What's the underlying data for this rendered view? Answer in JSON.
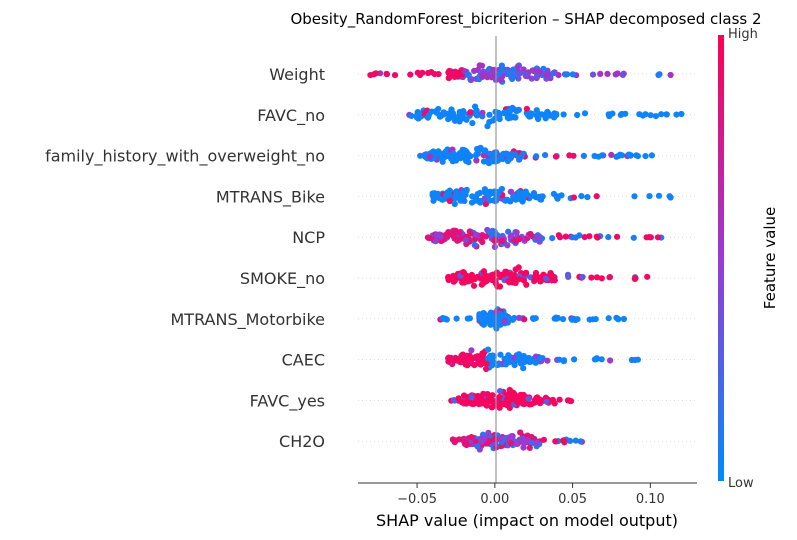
{
  "chart_data": {
    "type": "scatter",
    "subtype": "shap-beeswarm",
    "title": "Obesity_RandomForest_bicriterion – SHAP decomposed class 2",
    "xlabel": "SHAP value (impact on model output)",
    "xlim": [
      -0.088,
      0.13
    ],
    "xticks": [
      -0.05,
      0.0,
      0.05,
      0.1
    ],
    "xtick_labels": [
      "−0.05",
      "0.00",
      "0.05",
      "0.10"
    ],
    "grid": false,
    "colorbar": {
      "label": "Feature value",
      "high_label": "High",
      "low_label": "Low",
      "low_color": "#008bfb",
      "mid_color": "#9a3bd1",
      "high_color": "#ff0052"
    },
    "features": [
      {
        "name": "Weight",
        "min": -0.08,
        "max": 0.113,
        "core": [
          -0.03,
          0.04
        ],
        "color_pattern": "neg_high_pos_mixed",
        "sample_points": [
          [
            -0.08,
            0.9
          ],
          [
            -0.05,
            0.85
          ],
          [
            0.0,
            0.5
          ],
          [
            0.05,
            0.3
          ],
          [
            0.1,
            0.35
          ],
          [
            0.113,
            0.5
          ]
        ]
      },
      {
        "name": "FAVC_no",
        "min": -0.055,
        "max": 0.12,
        "core": [
          -0.05,
          0.04
        ],
        "color_pattern": "mostly_low",
        "sample_points": [
          [
            -0.05,
            0.05
          ],
          [
            0.0,
            0.4
          ],
          [
            0.05,
            0.05
          ],
          [
            0.12,
            0.05
          ]
        ]
      },
      {
        "name": "family_history_with_overweight_no",
        "min": -0.048,
        "max": 0.101,
        "core": [
          -0.045,
          0.02
        ],
        "color_pattern": "mostly_low_some_high",
        "sample_points": [
          [
            -0.048,
            0.05
          ],
          [
            0.0,
            0.3
          ],
          [
            0.03,
            0.9
          ],
          [
            0.101,
            0.05
          ]
        ]
      },
      {
        "name": "MTRANS_Bike",
        "min": -0.04,
        "max": 0.113,
        "core": [
          -0.04,
          0.03
        ],
        "color_pattern": "mostly_low",
        "sample_points": [
          [
            -0.04,
            0.05
          ],
          [
            0.0,
            0.1
          ],
          [
            0.113,
            0.05
          ]
        ]
      },
      {
        "name": "NCP",
        "min": -0.043,
        "max": 0.107,
        "core": [
          -0.04,
          0.03
        ],
        "color_pattern": "mixed",
        "sample_points": [
          [
            -0.043,
            0.8
          ],
          [
            0.0,
            0.5
          ],
          [
            0.05,
            0.7
          ],
          [
            0.107,
            0.9
          ]
        ]
      },
      {
        "name": "SMOKE_no",
        "min": -0.03,
        "max": 0.098,
        "core": [
          -0.03,
          0.04
        ],
        "color_pattern": "mostly_high",
        "sample_points": [
          [
            -0.03,
            0.95
          ],
          [
            0.0,
            0.9
          ],
          [
            0.098,
            0.95
          ]
        ]
      },
      {
        "name": "MTRANS_Motorbike",
        "min": -0.035,
        "max": 0.083,
        "core": [
          -0.01,
          0.01
        ],
        "color_pattern": "mostly_low",
        "sample_points": [
          [
            -0.035,
            0.3
          ],
          [
            0.0,
            0.05
          ],
          [
            0.083,
            0.05
          ]
        ]
      },
      {
        "name": "CAEC",
        "min": -0.03,
        "max": 0.092,
        "core": [
          -0.03,
          0.03
        ],
        "color_pattern": "neg_high_pos_low",
        "sample_points": [
          [
            -0.03,
            0.95
          ],
          [
            0.0,
            0.1
          ],
          [
            0.092,
            0.05
          ]
        ]
      },
      {
        "name": "FAVC_yes",
        "min": -0.028,
        "max": 0.049,
        "core": [
          -0.02,
          0.03
        ],
        "color_pattern": "mostly_high",
        "sample_points": [
          [
            -0.028,
            0.95
          ],
          [
            0.0,
            0.95
          ],
          [
            0.049,
            0.95
          ]
        ]
      },
      {
        "name": "CH2O",
        "min": -0.027,
        "max": 0.056,
        "core": [
          -0.02,
          0.03
        ],
        "color_pattern": "mixed",
        "sample_points": [
          [
            -0.027,
            0.5
          ],
          [
            0.0,
            0.5
          ],
          [
            0.056,
            0.6
          ]
        ]
      }
    ]
  }
}
